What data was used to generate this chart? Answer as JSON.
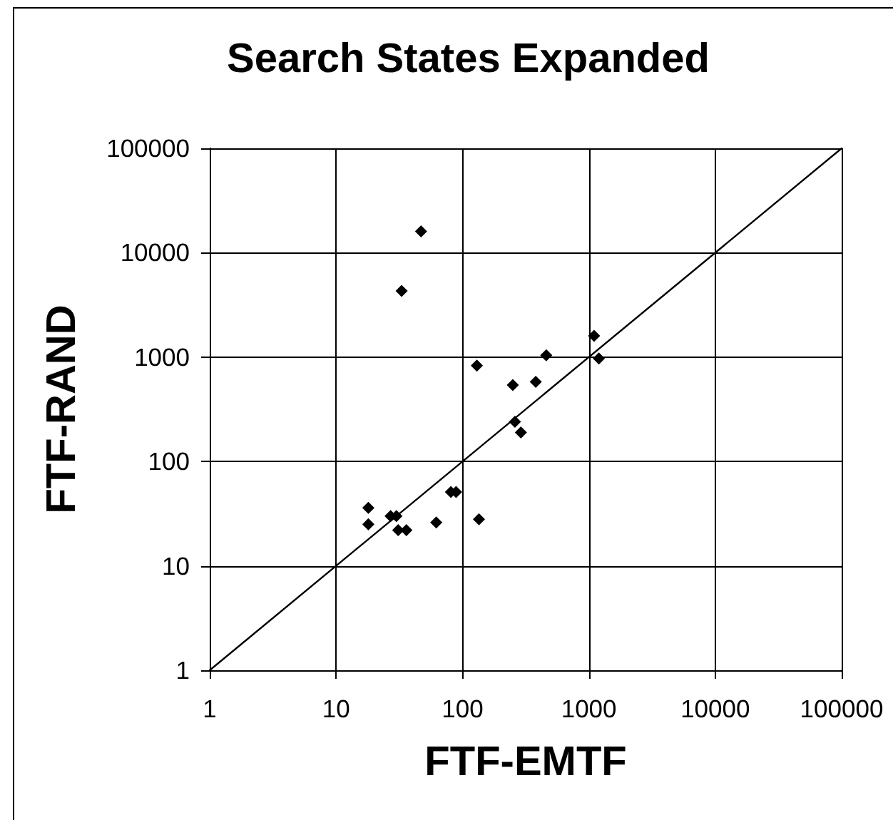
{
  "chart_data": {
    "type": "scatter",
    "title": "Search States Expanded",
    "xlabel": "FTF-EMTF",
    "ylabel": "FTF-RAND",
    "log": "xy",
    "xlim": [
      1,
      100000
    ],
    "ylim": [
      1,
      100000
    ],
    "xticks": [
      1,
      10,
      100,
      1000,
      10000,
      100000
    ],
    "yticks": [
      1,
      10,
      100,
      1000,
      10000,
      100000
    ],
    "grid": true,
    "marker": "diamond",
    "series": [
      {
        "color": "#000000",
        "x": [
          47,
          33,
          1100,
          1200,
          460,
          130,
          250,
          380,
          260,
          290,
          81,
          89,
          18,
          18,
          27,
          30,
          31,
          36,
          62,
          135
        ],
        "values": [
          16000,
          4300,
          1600,
          970,
          1040,
          830,
          540,
          580,
          240,
          190,
          51,
          51,
          36,
          25,
          30,
          30,
          22,
          22,
          26,
          28
        ]
      },
      {
        "type": "line",
        "color": "#000000",
        "marker": "none",
        "line_style": "solid",
        "x": [
          1,
          100000
        ],
        "values": [
          1,
          100000
        ]
      }
    ]
  }
}
